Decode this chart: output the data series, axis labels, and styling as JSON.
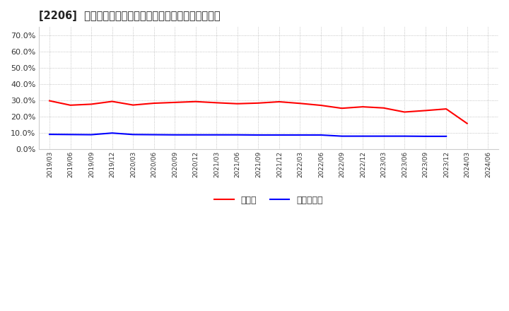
{
  "title": "[2206]  現頲金、有利子負債の総資産に対する比率の推移",
  "x_labels": [
    "2019/03",
    "2019/06",
    "2019/09",
    "2019/12",
    "2020/03",
    "2020/06",
    "2020/09",
    "2020/12",
    "2021/03",
    "2021/06",
    "2021/09",
    "2021/12",
    "2022/03",
    "2022/06",
    "2022/09",
    "2022/12",
    "2023/03",
    "2023/06",
    "2023/09",
    "2023/12",
    "2024/03",
    "2024/06"
  ],
  "cash": [
    0.297,
    0.27,
    0.276,
    0.293,
    0.271,
    0.282,
    0.287,
    0.292,
    0.285,
    0.279,
    0.283,
    0.291,
    0.281,
    0.269,
    0.251,
    0.26,
    0.253,
    0.228,
    0.237,
    0.247,
    0.158,
    null
  ],
  "debt": [
    0.091,
    0.09,
    0.089,
    0.099,
    0.09,
    0.089,
    0.088,
    0.088,
    0.088,
    0.088,
    0.087,
    0.087,
    0.087,
    0.087,
    0.08,
    0.08,
    0.08,
    0.08,
    0.079,
    0.079,
    null,
    null
  ],
  "cash_color": "#ff0000",
  "debt_color": "#0000ff",
  "bg_color": "#ffffff",
  "plot_bg_color": "#ffffff",
  "grid_color": "#aaaaaa",
  "legend_cash": "現頲金",
  "legend_debt": "有利子負債",
  "ylim": [
    0.0,
    0.75
  ],
  "yticks": [
    0.0,
    0.1,
    0.2,
    0.3,
    0.4,
    0.5,
    0.6,
    0.7
  ]
}
